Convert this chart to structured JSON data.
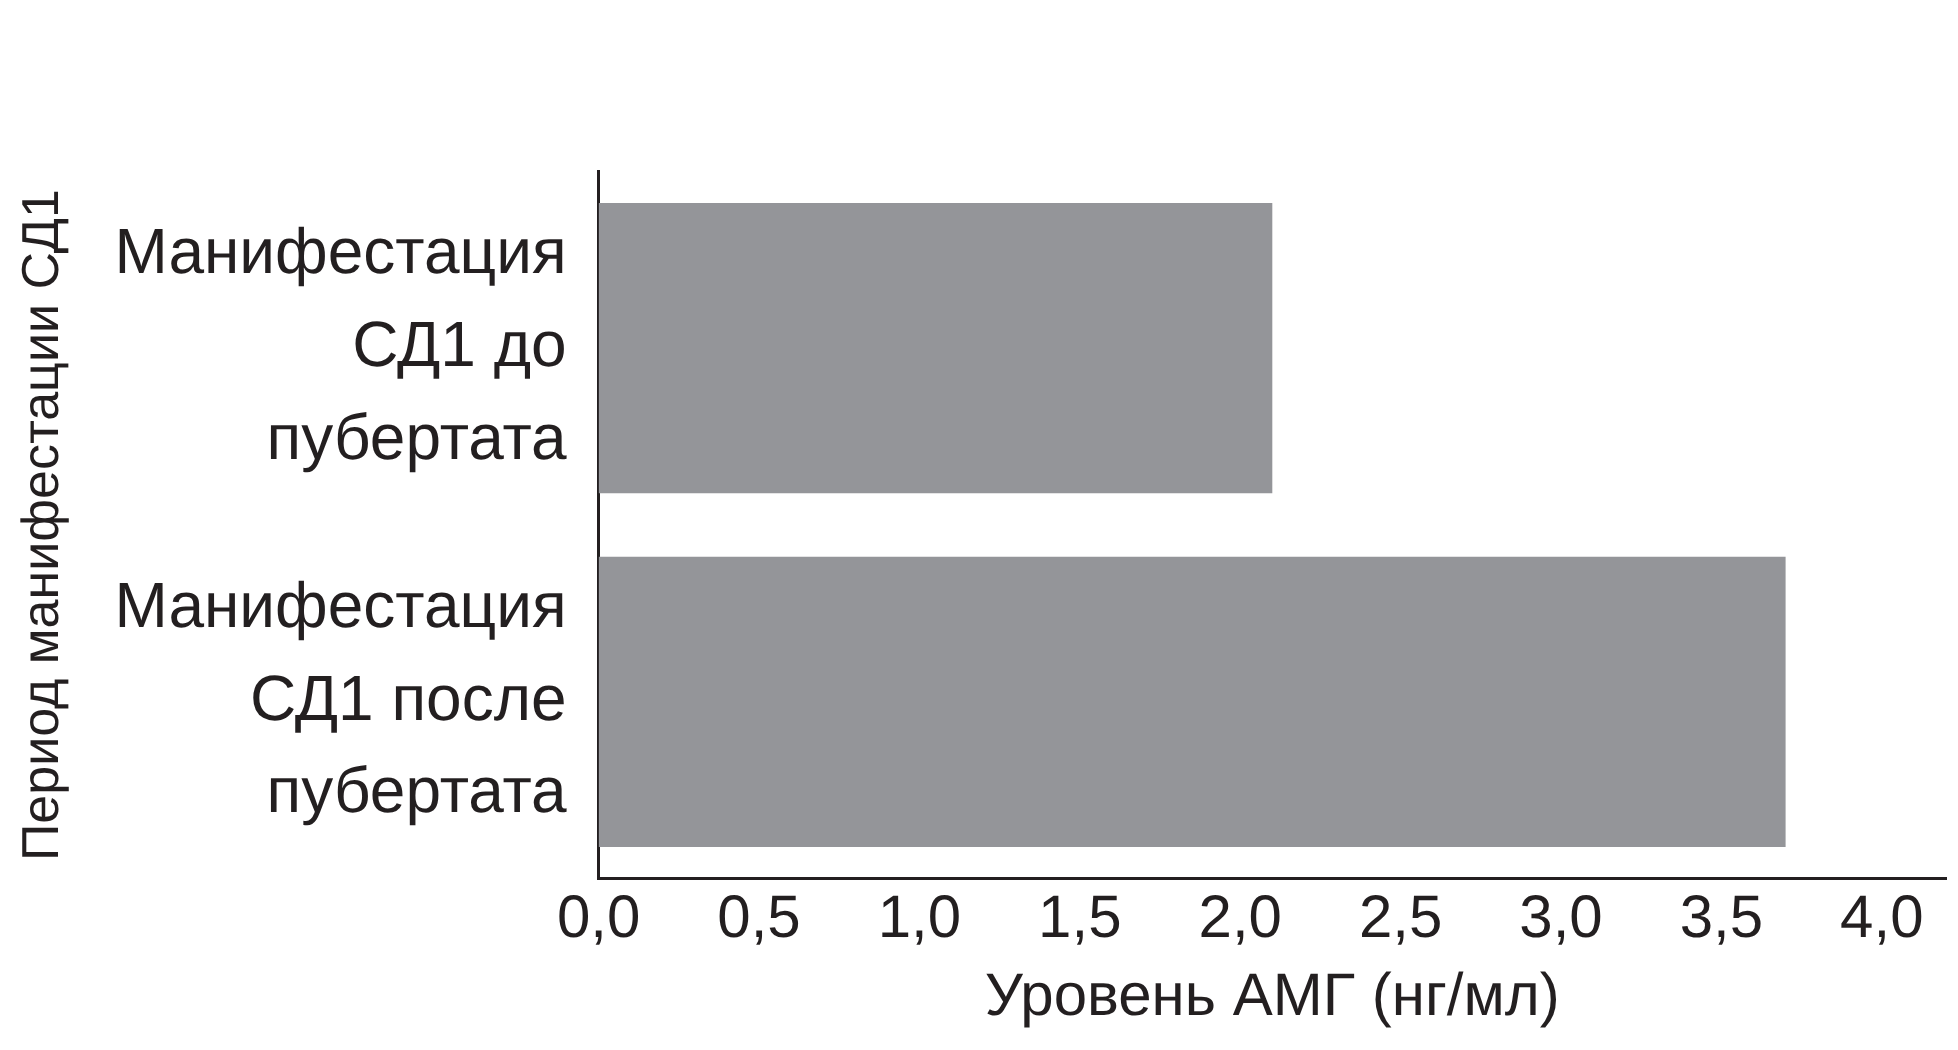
{
  "chart_data": {
    "type": "bar",
    "orientation": "horizontal",
    "categories": [
      "Манифестация СД1 до пубертата",
      "Манифестация СД1 после пубертата"
    ],
    "values": [
      2.1,
      3.7
    ],
    "color": "#949599",
    "xlabel": "Уровень АМГ (нг/мл)",
    "ylabel": "Период манифестации СД1",
    "xlim": [
      0,
      4.2
    ],
    "xticks": [
      {
        "value": 0,
        "label": "0,0"
      },
      {
        "value": 0.5,
        "label": "0,5"
      },
      {
        "value": 1,
        "label": "1,0"
      },
      {
        "value": 1.5,
        "label": "1,5"
      },
      {
        "value": 2,
        "label": "2,0"
      },
      {
        "value": 2.5,
        "label": "2,5"
      },
      {
        "value": 3,
        "label": "3,0"
      },
      {
        "value": 3.5,
        "label": "3,5"
      },
      {
        "value": 4,
        "label": "4,0"
      }
    ],
    "grid": false,
    "legend": false
  }
}
